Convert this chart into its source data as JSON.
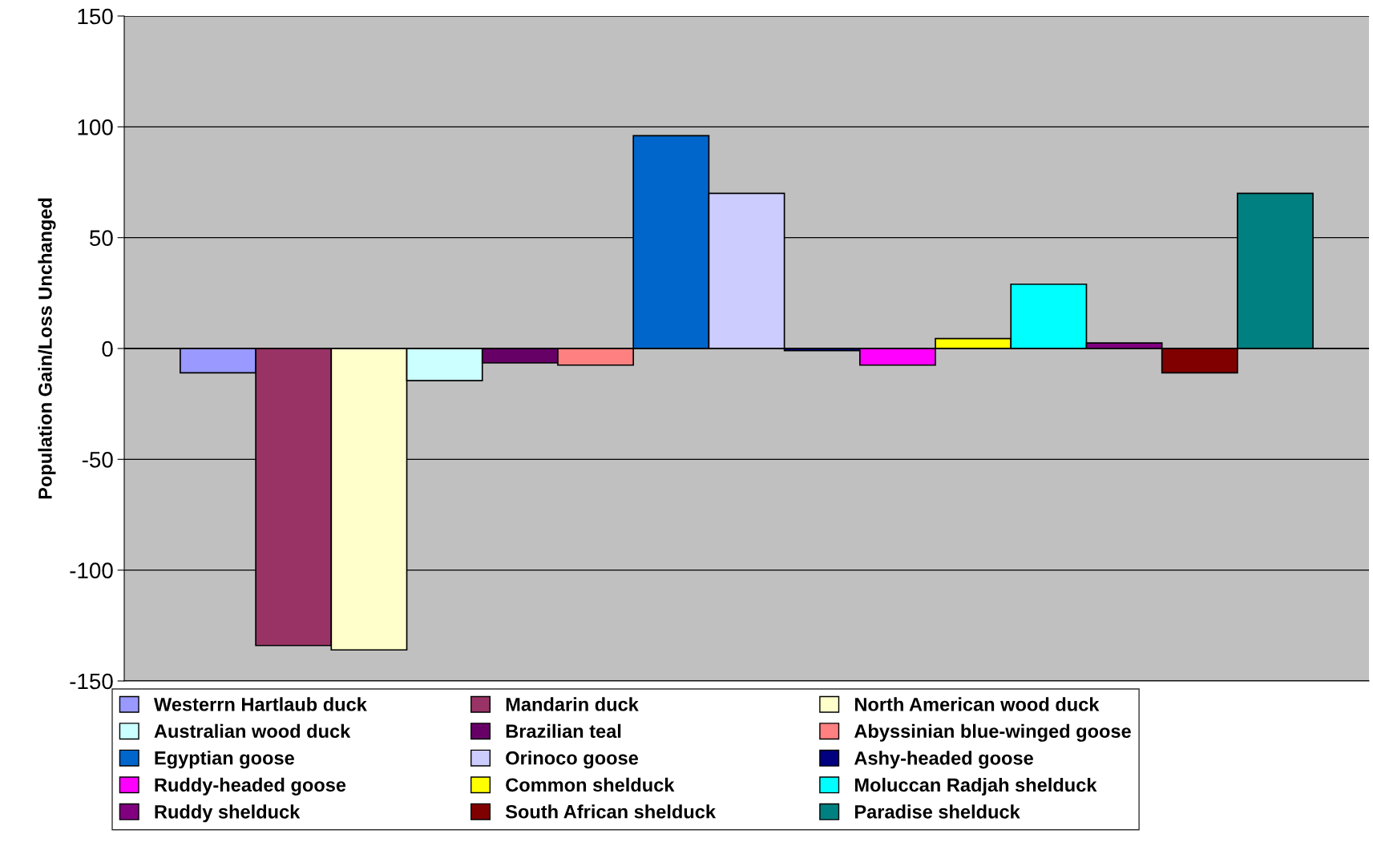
{
  "chart_data": {
    "type": "bar",
    "ylabel": "Population Gain/Loss Unchanged",
    "categories": [
      null
    ],
    "ylim": [
      -150,
      150
    ],
    "yticks": [
      -150,
      -100,
      -50,
      0,
      50,
      100,
      150
    ],
    "grid": "y",
    "legend": "bottom",
    "tick_labels": "y",
    "series": [
      {
        "name": "Westerrn Hartlaub duck",
        "color": "#9999ff",
        "values": [
          -11
        ]
      },
      {
        "name": "Mandarin duck",
        "color": "#993366",
        "values": [
          -134
        ]
      },
      {
        "name": "North American wood duck",
        "color": "#ffffcc",
        "values": [
          -136
        ]
      },
      {
        "name": "Australian wood duck",
        "color": "#ccffff",
        "values": [
          -14.5
        ]
      },
      {
        "name": "Brazilian teal",
        "color": "#660066",
        "values": [
          -6.5
        ]
      },
      {
        "name": "Abyssinian blue-winged goose",
        "color": "#ff8080",
        "values": [
          -7.5
        ]
      },
      {
        "name": "Egyptian goose",
        "color": "#0066cc",
        "values": [
          96
        ]
      },
      {
        "name": "Orinoco goose",
        "color": "#ccccff",
        "values": [
          70
        ]
      },
      {
        "name": "Ashy-headed goose",
        "color": "#000080",
        "values": [
          -1
        ]
      },
      {
        "name": "Ruddy-headed goose",
        "color": "#ff00ff",
        "values": [
          -7.5
        ]
      },
      {
        "name": "Common shelduck",
        "color": "#ffff00",
        "values": [
          4.5
        ]
      },
      {
        "name": "Moluccan Radjah shelduck",
        "color": "#00ffff",
        "values": [
          29
        ]
      },
      {
        "name": "Ruddy shelduck",
        "color": "#800080",
        "values": [
          2.5
        ]
      },
      {
        "name": "South African shelduck",
        "color": "#800000",
        "values": [
          -11
        ]
      },
      {
        "name": "Paradise shelduck",
        "color": "#008080",
        "values": [
          70
        ]
      }
    ]
  }
}
